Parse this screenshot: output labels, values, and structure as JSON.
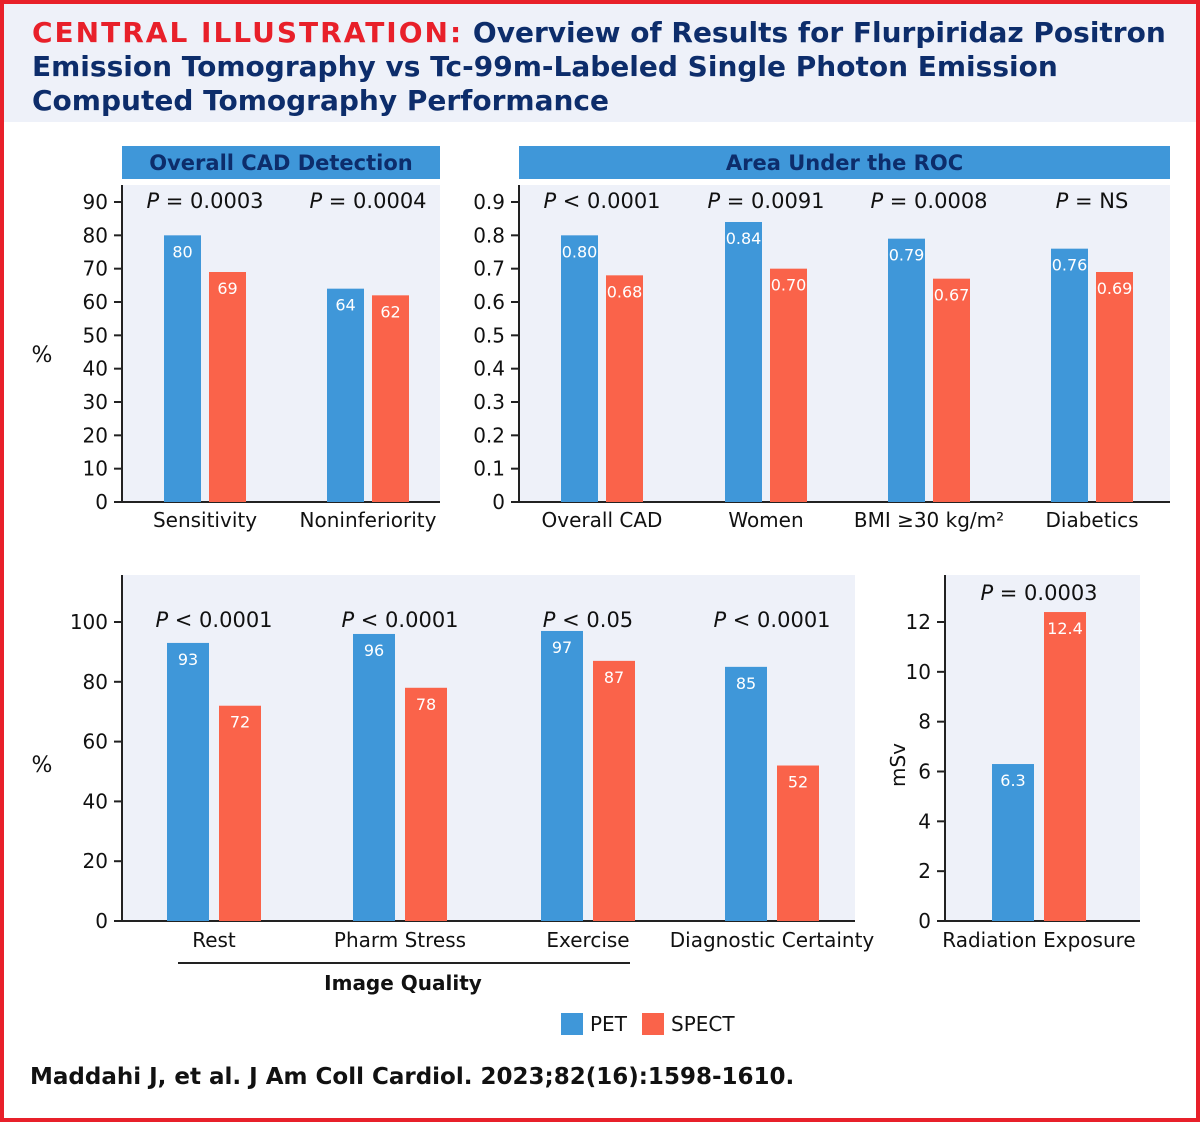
{
  "header": {
    "title_lead": "CENTRAL ILLUSTRATION:",
    "title_rest": " Overview of Results for Flurpiridaz Positron Emission Tomography vs Tc-99m-Labeled Single Photon Emission Computed Tomography Performance"
  },
  "citation": "Maddahi J, et al. J Am Coll Cardiol. 2023;82(16):1598-1610.",
  "legend": {
    "pet": "PET",
    "spect": "SPECT"
  },
  "colors": {
    "pet": "#3f97d9",
    "spect": "#fa634a",
    "panel_bg": "#eef1f9",
    "banner": "#3f97d9",
    "red": "#e8202a",
    "navy": "#0d2d6b"
  },
  "chart_data": [
    {
      "type": "bar",
      "title": "Overall CAD Detection",
      "ylabel": "%",
      "ylim": [
        0,
        90
      ],
      "yticks": [
        0,
        10,
        20,
        30,
        40,
        50,
        60,
        70,
        80,
        90
      ],
      "categories": [
        "Sensitivity",
        "Noninferiority"
      ],
      "pvalues": [
        "P = 0.0003",
        "P = 0.0004"
      ],
      "series": [
        {
          "name": "PET",
          "values": [
            80,
            64
          ],
          "labels": [
            "80",
            "64"
          ]
        },
        {
          "name": "SPECT",
          "values": [
            69,
            62
          ],
          "labels": [
            "69",
            "62"
          ]
        }
      ]
    },
    {
      "type": "bar",
      "title": "Area Under the ROC",
      "ylabel": "",
      "ylim": [
        0,
        0.9
      ],
      "yticks": [
        "0",
        "0.1",
        "0.2",
        "0.3",
        "0.4",
        "0.5",
        "0.6",
        "0.7",
        "0.8",
        "0.9"
      ],
      "categories": [
        "Overall CAD",
        "Women",
        "BMI ≥30 kg/m²",
        "Diabetics"
      ],
      "pvalues": [
        "P < 0.0001",
        "P = 0.0091",
        "P = 0.0008",
        "P = NS"
      ],
      "series": [
        {
          "name": "PET",
          "values": [
            0.8,
            0.84,
            0.79,
            0.76
          ],
          "labels": [
            "0.80",
            "0.84",
            "0.79",
            "0.76"
          ]
        },
        {
          "name": "SPECT",
          "values": [
            0.68,
            0.7,
            0.67,
            0.69
          ],
          "labels": [
            "0.68",
            "0.70",
            "0.67",
            "0.69"
          ]
        }
      ]
    },
    {
      "type": "bar",
      "title": "",
      "ylabel": "%",
      "ylim": [
        0,
        100
      ],
      "yticks": [
        0,
        20,
        40,
        60,
        80,
        100
      ],
      "categories": [
        "Rest",
        "Pharm Stress",
        "Exercise",
        "Diagnostic Certainty"
      ],
      "group_label": "Image Quality",
      "pvalues": [
        "P < 0.0001",
        "P < 0.0001",
        "P < 0.05",
        "P < 0.0001"
      ],
      "series": [
        {
          "name": "PET",
          "values": [
            93,
            96,
            97,
            85
          ],
          "labels": [
            "93",
            "96",
            "97",
            "85"
          ]
        },
        {
          "name": "SPECT",
          "values": [
            72,
            78,
            87,
            52
          ],
          "labels": [
            "72",
            "78",
            "87",
            "52"
          ]
        }
      ]
    },
    {
      "type": "bar",
      "title": "",
      "ylabel": "mSv",
      "ylim": [
        0,
        12
      ],
      "yticks": [
        0,
        2,
        4,
        6,
        8,
        10,
        12
      ],
      "categories": [
        "Radiation Exposure"
      ],
      "pvalues": [
        "P = 0.0003"
      ],
      "series": [
        {
          "name": "PET",
          "values": [
            6.3
          ],
          "labels": [
            "6.3"
          ]
        },
        {
          "name": "SPECT",
          "values": [
            12.4
          ],
          "labels": [
            "12.4"
          ]
        }
      ]
    }
  ]
}
